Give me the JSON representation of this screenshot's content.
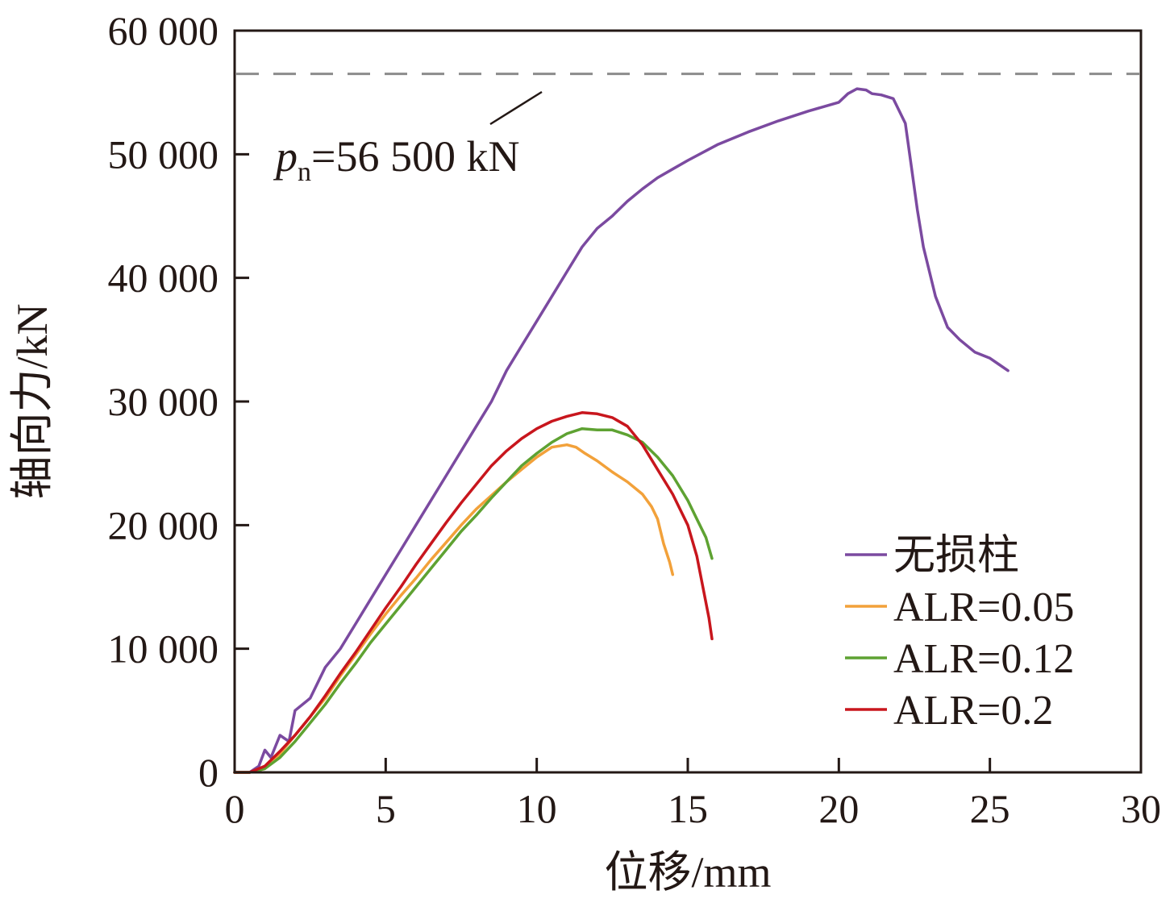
{
  "chart_data": {
    "type": "line",
    "xlabel": "位移/mm",
    "ylabel": "轴向力/kN",
    "xlim": [
      0,
      30
    ],
    "ylim": [
      0,
      60000
    ],
    "x_ticks": [
      0,
      5,
      10,
      15,
      20,
      25,
      30
    ],
    "y_ticks": [
      0,
      10000,
      20000,
      30000,
      40000,
      50000,
      60000
    ],
    "x_tick_labels": [
      "0",
      "5",
      "10",
      "15",
      "20",
      "25",
      "30"
    ],
    "y_tick_labels": [
      "0",
      "10 000",
      "20 000",
      "30 000",
      "40 000",
      "50 000",
      "60 000"
    ],
    "grid": false,
    "legend_position": "bottom-right",
    "reference_line": {
      "value": 56500,
      "label_main": "p",
      "label_sub": "n",
      "label_rest": "=56 500 kN",
      "color": "#8c8c8c"
    },
    "series": [
      {
        "name": "无损柱",
        "color": "#7b4aa0",
        "x": [
          0,
          0.5,
          0.8,
          1.0,
          1.2,
          1.5,
          1.8,
          2.0,
          2.5,
          3.0,
          3.5,
          4.0,
          4.5,
          5.0,
          5.5,
          6.0,
          6.5,
          7.0,
          7.5,
          8.0,
          8.5,
          9.0,
          9.5,
          10.0,
          10.5,
          11.0,
          11.5,
          12.0,
          12.5,
          13.0,
          13.5,
          14.0,
          14.5,
          15.0,
          16.0,
          17.0,
          18.0,
          19.0,
          20.0,
          20.3,
          20.6,
          20.9,
          21.1,
          21.4,
          21.8,
          22.2,
          22.4,
          22.6,
          22.8,
          23.0,
          23.2,
          23.6,
          24.0,
          24.5,
          25.0,
          25.3,
          25.6
        ],
        "y": [
          0,
          0,
          500,
          1800,
          1200,
          3000,
          2500,
          5000,
          6000,
          8500,
          10000,
          12000,
          14000,
          16000,
          18000,
          20000,
          22000,
          24000,
          26000,
          28000,
          30000,
          32500,
          34500,
          36500,
          38500,
          40500,
          42500,
          44000,
          45000,
          46200,
          47200,
          48100,
          48800,
          49500,
          50800,
          51800,
          52700,
          53500,
          54200,
          54900,
          55300,
          55200,
          54900,
          54800,
          54500,
          52500,
          49000,
          45500,
          42500,
          40500,
          38500,
          36000,
          35000,
          34000,
          33500,
          33000,
          32500
        ]
      },
      {
        "name": "ALR=0.05",
        "color": "#f2a13a",
        "x": [
          0,
          0.5,
          1.0,
          1.5,
          2.0,
          2.5,
          3.0,
          3.5,
          4.0,
          4.5,
          5.0,
          5.5,
          6.0,
          6.5,
          7.0,
          7.5,
          8.0,
          8.5,
          9.0,
          9.5,
          10.0,
          10.5,
          11.0,
          11.3,
          11.6,
          12.0,
          12.5,
          13.0,
          13.5,
          13.8,
          14.0,
          14.2,
          14.4,
          14.5
        ],
        "y": [
          0,
          0,
          300,
          1500,
          3000,
          4500,
          6000,
          7800,
          9500,
          11200,
          12800,
          14300,
          15700,
          17200,
          18600,
          20000,
          21300,
          22400,
          23500,
          24500,
          25500,
          26300,
          26500,
          26300,
          25800,
          25200,
          24300,
          23500,
          22500,
          21500,
          20500,
          18500,
          17000,
          16000
        ]
      },
      {
        "name": "ALR=0.12",
        "color": "#5ea232",
        "x": [
          0,
          0.5,
          1.0,
          1.5,
          2.0,
          2.5,
          3.0,
          3.5,
          4.0,
          4.5,
          5.0,
          5.5,
          6.0,
          6.5,
          7.0,
          7.5,
          8.0,
          8.5,
          9.0,
          9.5,
          10.0,
          10.5,
          11.0,
          11.5,
          12.0,
          12.5,
          13.0,
          13.5,
          14.0,
          14.5,
          15.0,
          15.3,
          15.6,
          15.8
        ],
        "y": [
          0,
          0,
          300,
          1200,
          2500,
          4000,
          5500,
          7200,
          8800,
          10500,
          12000,
          13500,
          15000,
          16500,
          18000,
          19500,
          20800,
          22200,
          23500,
          24800,
          25800,
          26700,
          27400,
          27800,
          27700,
          27700,
          27300,
          26700,
          25500,
          24000,
          22000,
          20500,
          19000,
          17300
        ]
      },
      {
        "name": "ALR=0.2",
        "color": "#c8161d",
        "x": [
          0,
          0.5,
          1.0,
          1.5,
          2.0,
          2.5,
          3.0,
          3.5,
          4.0,
          4.5,
          5.0,
          5.5,
          6.0,
          6.5,
          7.0,
          7.5,
          8.0,
          8.5,
          9.0,
          9.5,
          10.0,
          10.5,
          11.0,
          11.5,
          12.0,
          12.5,
          13.0,
          13.5,
          14.0,
          14.5,
          15.0,
          15.3,
          15.5,
          15.7,
          15.8
        ],
        "y": [
          0,
          0,
          500,
          1700,
          3000,
          4500,
          6200,
          8000,
          9700,
          11500,
          13300,
          15000,
          16800,
          18500,
          20200,
          21800,
          23300,
          24800,
          26000,
          27000,
          27800,
          28400,
          28800,
          29100,
          29000,
          28700,
          28000,
          26500,
          24500,
          22500,
          20000,
          17500,
          15000,
          12500,
          10800
        ]
      }
    ]
  }
}
